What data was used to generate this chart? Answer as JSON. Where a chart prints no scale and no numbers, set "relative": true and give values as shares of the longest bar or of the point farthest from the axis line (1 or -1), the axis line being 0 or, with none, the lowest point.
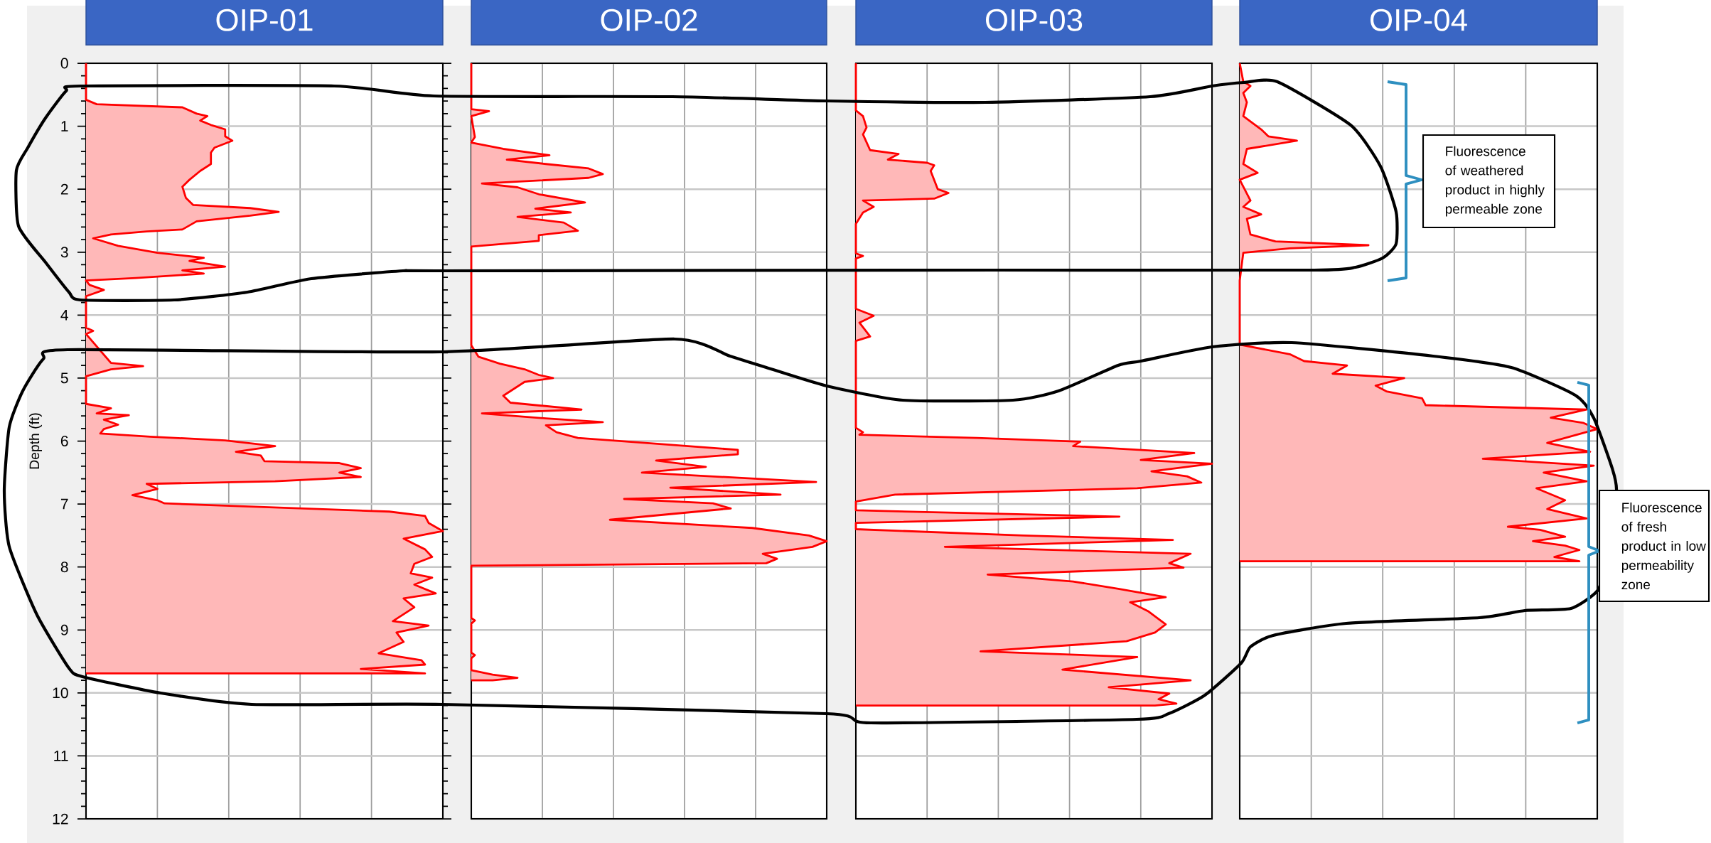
{
  "chart_data": [
    {
      "type": "area",
      "title": "OIP-01",
      "ylabel": "Depth (ft)",
      "orientation": "horizontal",
      "relative": true,
      "color": "#ff0000",
      "grid": true,
      "tick_labels": "y",
      "ylim": [
        12,
        0
      ],
      "yticks": [
        0,
        1,
        2,
        3,
        4,
        5,
        6,
        7,
        8,
        9,
        10,
        11,
        12
      ],
      "x": [
        0,
        0.58,
        0.65,
        0.7,
        0.8,
        0.84,
        0.91,
        0.98,
        1.05,
        1.16,
        1.23,
        1.34,
        1.42,
        1.6,
        1.71,
        1.85,
        1.96,
        2.14,
        2.25,
        2.3,
        2.36,
        2.42,
        2.51,
        2.64,
        2.67,
        2.72,
        2.78,
        2.9,
        3.01,
        3.09,
        3.14,
        3.23,
        3.29,
        3.34,
        3.41,
        3.45,
        3.52,
        3.6,
        3.7,
        4.2,
        4.25,
        4.3,
        4.76,
        4.81,
        4.86,
        4.97,
        5.41,
        5.48,
        5.56,
        5.59,
        5.66,
        5.74,
        5.81,
        5.88,
        5.93,
        5.99,
        6.08,
        6.17,
        6.23,
        6.32,
        6.35,
        6.43,
        6.5,
        6.57,
        6.64,
        6.68,
        6.76,
        6.86,
        6.94,
        6.99,
        7.12,
        7.19,
        7.3,
        7.43,
        7.55,
        7.72,
        7.84,
        7.95,
        8.1,
        8.17,
        8.28,
        8.42,
        8.5,
        8.64,
        8.86,
        8.93,
        9.04,
        9.19,
        9.37,
        9.48,
        9.55,
        9.62,
        9.69
      ],
      "values": [
        0,
        0,
        0.03,
        0.27,
        0.31,
        0.34,
        0.32,
        0.35,
        0.39,
        0.39,
        0.41,
        0.36,
        0.35,
        0.35,
        0.32,
        0.29,
        0.27,
        0.28,
        0.3,
        0.46,
        0.54,
        0.46,
        0.31,
        0.27,
        0.17,
        0.07,
        0.02,
        0.09,
        0.2,
        0.33,
        0.29,
        0.39,
        0.27,
        0.33,
        0.14,
        0,
        0.01,
        0.05,
        0,
        0,
        0.02,
        0,
        0.07,
        0.16,
        0.07,
        0,
        0,
        0.07,
        0.03,
        0.12,
        0.05,
        0.09,
        0.05,
        0.04,
        0.18,
        0.39,
        0.53,
        0.42,
        0.49,
        0.5,
        0.71,
        0.77,
        0.71,
        0.77,
        0.53,
        0.17,
        0.2,
        0.13,
        0.2,
        0.22,
        0.85,
        0.95,
        0.96,
        1.0,
        0.89,
        0.95,
        0.97,
        0.92,
        0.91,
        0.97,
        0.92,
        0.98,
        0.89,
        0.92,
        0.86,
        0.96,
        0.87,
        0.89,
        0.82,
        0.94,
        0.95,
        0.77,
        0.95
      ]
    },
    {
      "type": "area",
      "title": "OIP-02",
      "orientation": "horizontal",
      "relative": true,
      "color": "#ff0000",
      "grid": true,
      "tick_labels": false,
      "ylim": [
        12,
        0
      ],
      "yticks": [
        0,
        1,
        2,
        3,
        4,
        5,
        6,
        7,
        8,
        9,
        10,
        11,
        12
      ],
      "x": [
        0,
        0.73,
        0.76,
        0.84,
        1.17,
        1.26,
        1.36,
        1.46,
        1.53,
        1.6,
        1.67,
        1.76,
        1.82,
        1.91,
        1.97,
        2.08,
        2.21,
        2.31,
        2.37,
        2.44,
        2.53,
        2.66,
        2.73,
        2.82,
        2.91,
        4.48,
        4.66,
        4.77,
        4.86,
        4.95,
        5.0,
        5.06,
        5.28,
        5.39,
        5.5,
        5.56,
        5.64,
        5.7,
        5.75,
        5.86,
        5.95,
        6.02,
        6.14,
        6.21,
        6.31,
        6.41,
        6.5,
        6.65,
        6.74,
        6.85,
        6.92,
        6.99,
        7.07,
        7.25,
        7.38,
        7.5,
        7.59,
        7.68,
        7.79,
        7.87,
        7.94,
        7.98,
        8.81,
        8.85,
        8.9,
        9.36,
        9.4,
        9.45,
        9.64,
        9.71,
        9.76,
        9.8
      ],
      "values": [
        0,
        0,
        0.05,
        0,
        0.01,
        0,
        0.09,
        0.22,
        0.1,
        0.21,
        0.33,
        0.37,
        0.33,
        0.03,
        0.13,
        0.19,
        0.32,
        0.18,
        0.28,
        0.13,
        0.26,
        0.3,
        0.19,
        0.19,
        0,
        0,
        0.02,
        0.08,
        0.15,
        0.19,
        0.23,
        0.15,
        0.09,
        0.11,
        0.31,
        0.03,
        0.21,
        0.37,
        0.21,
        0.24,
        0.3,
        0.47,
        0.75,
        0.75,
        0.52,
        0.66,
        0.48,
        0.97,
        0.56,
        0.87,
        0.43,
        0.68,
        0.73,
        0.39,
        0.79,
        0.95,
        1.0,
        0.96,
        0.82,
        0.86,
        0.83,
        0,
        0,
        0.01,
        0,
        0,
        0.01,
        0,
        0,
        0.06,
        0.13,
        0.06
      ]
    },
    {
      "type": "area",
      "title": "OIP-03",
      "orientation": "horizontal",
      "relative": true,
      "color": "#ff0000",
      "grid": true,
      "tick_labels": false,
      "ylim": [
        12,
        0
      ],
      "yticks": [
        0,
        1,
        2,
        3,
        4,
        5,
        6,
        7,
        8,
        9,
        10,
        11,
        12
      ],
      "x": [
        0,
        0.75,
        0.84,
        1.02,
        1.13,
        1.38,
        1.44,
        1.53,
        1.58,
        1.62,
        1.71,
        2.0,
        2.06,
        2.15,
        2.18,
        2.28,
        2.37,
        2.55,
        3.02,
        3.06,
        3.1,
        3.9,
        4.01,
        4.12,
        4.34,
        4.41,
        5.79,
        5.86,
        5.9,
        5.95,
        6.01,
        6.08,
        6.19,
        6.3,
        6.36,
        6.48,
        6.56,
        6.66,
        6.75,
        6.85,
        6.96,
        7.1,
        7.2,
        7.3,
        7.4,
        7.5,
        7.57,
        7.68,
        7.79,
        7.94,
        8.01,
        8.12,
        8.23,
        8.35,
        8.48,
        8.56,
        8.7,
        8.91,
        9.04,
        9.18,
        9.34,
        9.43,
        9.63,
        9.8,
        9.91,
        10.01,
        10.1,
        10.17,
        10.2
      ],
      "values": [
        0,
        0,
        0.02,
        0.03,
        0.02,
        0.04,
        0.12,
        0.09,
        0.2,
        0.22,
        0.21,
        0.23,
        0.26,
        0.22,
        0.02,
        0.05,
        0.02,
        0,
        0,
        0.02,
        0,
        0,
        0.05,
        0.01,
        0.04,
        0,
        0,
        0.02,
        0.01,
        0.34,
        0.63,
        0.61,
        0.95,
        0.8,
        1.0,
        0.83,
        0.93,
        0.97,
        0.79,
        0.11,
        0,
        0,
        0.74,
        0,
        0,
        0.47,
        0.89,
        0.25,
        0.94,
        0.88,
        0.92,
        0.37,
        0.61,
        0.74,
        0.87,
        0.77,
        0.82,
        0.87,
        0.84,
        0.76,
        0.35,
        0.79,
        0.58,
        0.94,
        0.71,
        0.88,
        0.85,
        0.9,
        0.84
      ]
    },
    {
      "type": "area",
      "title": "OIP-04",
      "orientation": "horizontal",
      "relative": true,
      "color": "#ff0000",
      "grid": true,
      "tick_labels": false,
      "ylim": [
        12,
        0
      ],
      "yticks": [
        0,
        1,
        2,
        3,
        4,
        5,
        6,
        7,
        8,
        9,
        10,
        11,
        12
      ],
      "annotations": [
        "Fluorescence of weathered product in highly permeable zone",
        "Fluorescence of fresh product in low permeability zone"
      ],
      "x": [
        0,
        0.29,
        0.36,
        0.47,
        0.62,
        0.84,
        1.05,
        1.16,
        1.23,
        1.36,
        1.6,
        1.74,
        1.85,
        2.18,
        2.28,
        2.4,
        2.47,
        2.72,
        2.83,
        2.89,
        2.94,
        3.01,
        3.45,
        4.47,
        4.62,
        4.73,
        4.8,
        4.93,
        5.0,
        5.12,
        5.21,
        5.32,
        5.43,
        5.5,
        5.63,
        5.71,
        5.81,
        6.03,
        6.17,
        6.28,
        6.39,
        6.5,
        6.64,
        6.75,
        6.94,
        7.08,
        7.23,
        7.36,
        7.41,
        7.52,
        7.59,
        7.66,
        7.73,
        7.84,
        7.91
      ],
      "values": [
        0,
        0.01,
        0.03,
        0.01,
        0.02,
        0.01,
        0.06,
        0.08,
        0.16,
        0.02,
        0.01,
        0.05,
        0,
        0.03,
        0.01,
        0.06,
        0.02,
        0.03,
        0.1,
        0.36,
        0.14,
        0.01,
        0,
        0,
        0.14,
        0.18,
        0.3,
        0.26,
        0.46,
        0.38,
        0.41,
        0.51,
        0.52,
        0.97,
        0.87,
        0.96,
        1.0,
        0.86,
        0.98,
        0.68,
        0.99,
        0.85,
        0.97,
        0.83,
        0.91,
        0.86,
        0.97,
        0.75,
        0.84,
        0.91,
        0.82,
        0.91,
        0.95,
        0.88,
        0.95
      ]
    }
  ]
}
